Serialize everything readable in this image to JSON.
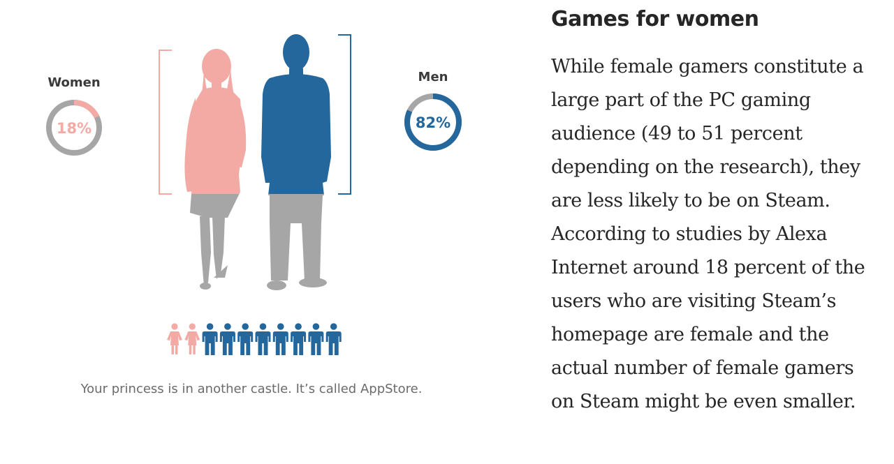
{
  "colors": {
    "women": "#f4aaa4",
    "men": "#23679c",
    "gray": "#a6a6a6",
    "text": "#262626",
    "caption": "#6b6b6b"
  },
  "women": {
    "label": "Women",
    "percent_text": "18%",
    "fraction": 0.18
  },
  "men": {
    "label": "Men",
    "percent_text": "82%",
    "fraction": 0.82
  },
  "people_row": {
    "women_count": 2,
    "men_count": 8,
    "icons": [
      "woman-icon",
      "man-icon"
    ]
  },
  "caption": "Your princess is in another castle. It’s called AppStore.",
  "article": {
    "heading": "Games for women",
    "body": "While female gamers constitute a large part of the PC gaming audience (49 to 51 percent depending on the research), they are less likely to be on Steam. According to studies by Alexa Internet around 18 percent of the users who are visiting Steam’s homepage are female and the actual number of female gamers on Steam might be even smaller."
  }
}
